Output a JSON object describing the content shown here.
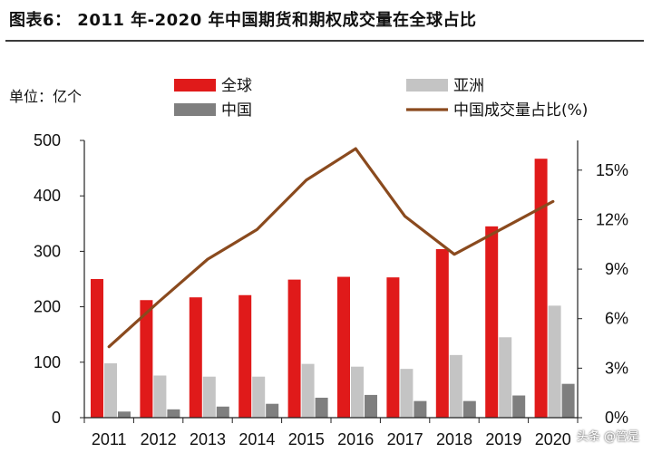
{
  "chart_data": {
    "type": "bar+line",
    "title": "图表6： 2011 年-2020 年中国期货和期权成交量在全球占比",
    "unit_label": "单位：亿个",
    "categories": [
      "2011",
      "2012",
      "2013",
      "2014",
      "2015",
      "2016",
      "2017",
      "2018",
      "2019",
      "2020"
    ],
    "series": [
      {
        "name": "全球",
        "type": "bar",
        "axis": "left",
        "color": "#e01a1a",
        "values": [
          250,
          212,
          217,
          221,
          249,
          254,
          253,
          304,
          345,
          467
        ]
      },
      {
        "name": "亚洲",
        "type": "bar",
        "axis": "left",
        "color": "#c4c4c4",
        "values": [
          98,
          76,
          74,
          74,
          97,
          92,
          88,
          113,
          145,
          202
        ]
      },
      {
        "name": "中国",
        "type": "bar",
        "axis": "left",
        "color": "#7f7f7f",
        "values": [
          11,
          15,
          20,
          25,
          36,
          41,
          30,
          30,
          40,
          61
        ]
      },
      {
        "name": "中国成交量占比(%)",
        "type": "line",
        "axis": "right",
        "color": "#8a4a1e",
        "values": [
          4.3,
          7.0,
          9.6,
          11.4,
          14.4,
          16.3,
          12.2,
          9.9,
          11.5,
          13.1
        ]
      }
    ],
    "y_left": {
      "min": 0,
      "max": 500,
      "ticks": [
        0,
        100,
        200,
        300,
        400,
        500
      ],
      "tick_labels": [
        "0",
        "100",
        "200",
        "300",
        "400",
        "500"
      ]
    },
    "y_right": {
      "min": 0,
      "max": 16.8,
      "ticks": [
        0,
        3,
        6,
        9,
        12,
        15
      ],
      "tick_labels": [
        "0%",
        "3%",
        "6%",
        "9%",
        "12%",
        "15%"
      ]
    },
    "grid": false,
    "legend": "top"
  },
  "watermark": "头条 @管是"
}
